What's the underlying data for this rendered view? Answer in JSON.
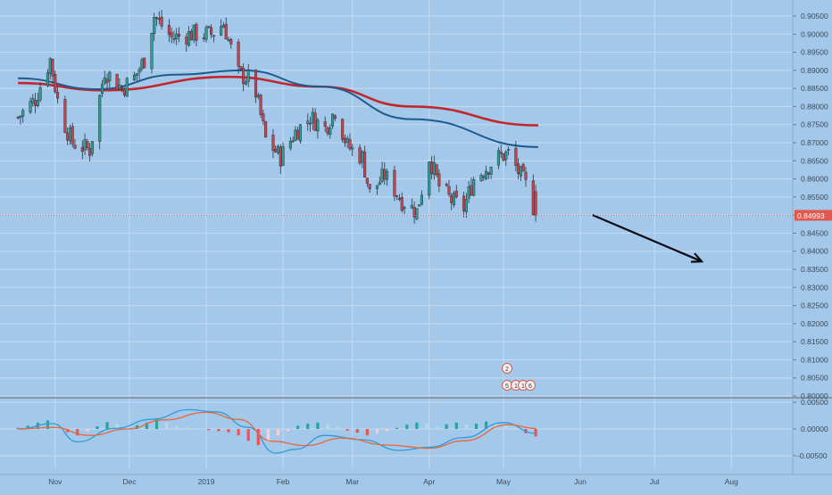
{
  "chart_data": [
    {
      "type": "candlestick",
      "title": "",
      "x_tick_labels": [
        "Nov",
        "Dec",
        "2019",
        "Feb",
        "Mar",
        "Apr",
        "May",
        "Jun",
        "Jul",
        "Aug"
      ],
      "y_tick_labels": [
        "0.90500",
        "0.90000",
        "0.89500",
        "0.89000",
        "0.88500",
        "0.88000",
        "0.87500",
        "0.87000",
        "0.86500",
        "0.86000",
        "0.85500",
        "0.85000",
        "0.84500",
        "0.84000",
        "0.83500",
        "0.83000",
        "0.82500",
        "0.82000",
        "0.81500",
        "0.81000",
        "0.80500",
        "0.80000"
      ],
      "ylim": [
        0.8,
        0.907
      ],
      "grid": true,
      "last_price": "0.84993",
      "price_series_anchors": [
        {
          "date": "2018-10-17",
          "close": 0.877
        },
        {
          "date": "2018-10-24",
          "close": 0.882
        },
        {
          "date": "2018-10-30",
          "close": 0.893
        },
        {
          "date": "2018-11-03",
          "close": 0.878
        },
        {
          "date": "2018-11-08",
          "close": 0.87
        },
        {
          "date": "2018-11-15",
          "close": 0.868
        },
        {
          "date": "2018-11-21",
          "close": 0.89
        },
        {
          "date": "2018-11-28",
          "close": 0.885
        },
        {
          "date": "2018-12-03",
          "close": 0.888
        },
        {
          "date": "2018-12-07",
          "close": 0.893
        },
        {
          "date": "2018-12-11",
          "close": 0.905
        },
        {
          "date": "2018-12-18",
          "close": 0.899
        },
        {
          "date": "2018-12-26",
          "close": 0.9
        },
        {
          "date": "2019-01-03",
          "close": 0.9
        },
        {
          "date": "2019-01-08",
          "close": 0.903
        },
        {
          "date": "2019-01-14",
          "close": 0.889
        },
        {
          "date": "2019-01-20",
          "close": 0.887
        },
        {
          "date": "2019-01-25",
          "close": 0.871
        },
        {
          "date": "2019-01-31",
          "close": 0.866
        },
        {
          "date": "2019-02-06",
          "close": 0.873
        },
        {
          "date": "2019-02-12",
          "close": 0.877
        },
        {
          "date": "2019-02-18",
          "close": 0.874
        },
        {
          "date": "2019-02-22",
          "close": 0.879
        },
        {
          "date": "2019-02-27",
          "close": 0.869
        },
        {
          "date": "2019-03-05",
          "close": 0.866
        },
        {
          "date": "2019-03-08",
          "close": 0.856
        },
        {
          "date": "2019-03-14",
          "close": 0.861
        },
        {
          "date": "2019-03-21",
          "close": 0.854
        },
        {
          "date": "2019-03-27",
          "close": 0.851
        },
        {
          "date": "2019-04-01",
          "close": 0.866
        },
        {
          "date": "2019-04-05",
          "close": 0.858
        },
        {
          "date": "2019-04-10",
          "close": 0.854
        },
        {
          "date": "2019-04-15",
          "close": 0.852
        },
        {
          "date": "2019-04-19",
          "close": 0.86
        },
        {
          "date": "2019-04-24",
          "close": 0.863
        },
        {
          "date": "2019-04-29",
          "close": 0.866
        },
        {
          "date": "2019-05-03",
          "close": 0.867
        },
        {
          "date": "2019-05-07",
          "close": 0.862
        },
        {
          "date": "2019-05-11",
          "close": 0.857
        },
        {
          "date": "2019-05-14",
          "close": 0.84993
        }
      ],
      "moving_averages": [
        {
          "color": "#c0282d",
          "points": [
            {
              "date": "2018-10-17",
              "value": 0.8865
            },
            {
              "date": "2018-11-21",
              "value": 0.8845
            },
            {
              "date": "2019-01-10",
              "value": 0.8882
            },
            {
              "date": "2019-02-16",
              "value": 0.8855
            },
            {
              "date": "2019-03-25",
              "value": 0.88
            },
            {
              "date": "2019-05-15",
              "value": 0.8748
            }
          ]
        },
        {
          "color": "#1f5a8c",
          "points": [
            {
              "date": "2018-10-17",
              "value": 0.8878
            },
            {
              "date": "2018-11-18",
              "value": 0.8848
            },
            {
              "date": "2018-12-20",
              "value": 0.8888
            },
            {
              "date": "2019-01-16",
              "value": 0.89
            },
            {
              "date": "2019-02-16",
              "value": 0.8855
            },
            {
              "date": "2019-03-25",
              "value": 0.8765
            },
            {
              "date": "2019-05-15",
              "value": 0.8688
            }
          ]
        }
      ],
      "projection_arrow": {
        "start": {
          "date": "2019-06-06",
          "value": 0.85
        },
        "end": {
          "date": "2019-07-20",
          "value": 0.8372
        }
      },
      "event_markers": [
        "2",
        "5",
        "1",
        "1",
        "6"
      ]
    },
    {
      "type": "bar",
      "title": "",
      "y_tick_labels": [
        "0.00500",
        "0.00000",
        "-0.00500"
      ],
      "ylim": [
        -0.0066,
        0.006
      ],
      "grid": true,
      "histogram_bars": [
        {
          "date": "2018-10-17",
          "value": 0.0002
        },
        {
          "date": "2018-10-21",
          "value": 0.0006
        },
        {
          "date": "2018-10-25",
          "value": 0.0012
        },
        {
          "date": "2018-10-29",
          "value": 0.0016
        },
        {
          "date": "2018-11-02",
          "value": 0.0003
        },
        {
          "date": "2018-11-06",
          "value": -0.0006
        },
        {
          "date": "2018-11-10",
          "value": -0.0012
        },
        {
          "date": "2018-11-14",
          "value": -0.0004
        },
        {
          "date": "2018-11-18",
          "value": 0.0005
        },
        {
          "date": "2018-11-22",
          "value": 0.0013
        },
        {
          "date": "2018-11-26",
          "value": 0.001
        },
        {
          "date": "2018-11-30",
          "value": 0.0004
        },
        {
          "date": "2018-12-04",
          "value": 0.0007
        },
        {
          "date": "2018-12-08",
          "value": 0.0012
        },
        {
          "date": "2018-12-12",
          "value": 0.002
        },
        {
          "date": "2018-12-16",
          "value": 0.0012
        },
        {
          "date": "2018-12-20",
          "value": 0.0006
        },
        {
          "date": "2018-12-24",
          "value": 0.0003
        },
        {
          "date": "2018-12-28",
          "value": 0.0001
        },
        {
          "date": "2019-01-02",
          "value": -0.0002
        },
        {
          "date": "2019-01-06",
          "value": -0.0004
        },
        {
          "date": "2019-01-10",
          "value": -0.0006
        },
        {
          "date": "2019-01-14",
          "value": -0.0012
        },
        {
          "date": "2019-01-18",
          "value": -0.0022
        },
        {
          "date": "2019-01-22",
          "value": -0.003
        },
        {
          "date": "2019-01-26",
          "value": -0.0024
        },
        {
          "date": "2019-01-30",
          "value": -0.0012
        },
        {
          "date": "2019-02-03",
          "value": -0.0004
        },
        {
          "date": "2019-02-07",
          "value": 0.0006
        },
        {
          "date": "2019-02-11",
          "value": 0.001
        },
        {
          "date": "2019-02-15",
          "value": 0.0012
        },
        {
          "date": "2019-02-19",
          "value": 0.0009
        },
        {
          "date": "2019-02-23",
          "value": 0.0005
        },
        {
          "date": "2019-02-27",
          "value": -0.0003
        },
        {
          "date": "2019-03-03",
          "value": -0.0007
        },
        {
          "date": "2019-03-07",
          "value": -0.0012
        },
        {
          "date": "2019-03-11",
          "value": -0.0008
        },
        {
          "date": "2019-03-15",
          "value": -0.0004
        },
        {
          "date": "2019-03-19",
          "value": 0.0002
        },
        {
          "date": "2019-03-23",
          "value": 0.0008
        },
        {
          "date": "2019-03-27",
          "value": 0.0012
        },
        {
          "date": "2019-03-31",
          "value": 0.001
        },
        {
          "date": "2019-04-04",
          "value": 0.0004
        },
        {
          "date": "2019-04-08",
          "value": 0.0009
        },
        {
          "date": "2019-04-12",
          "value": 0.0012
        },
        {
          "date": "2019-04-16",
          "value": 0.0008
        },
        {
          "date": "2019-04-20",
          "value": 0.001
        },
        {
          "date": "2019-04-24",
          "value": 0.0014
        },
        {
          "date": "2019-04-28",
          "value": 0.001
        },
        {
          "date": "2019-05-02",
          "value": 0.0007
        },
        {
          "date": "2019-05-06",
          "value": 0.0002
        },
        {
          "date": "2019-05-10",
          "value": -0.0008
        },
        {
          "date": "2019-05-14",
          "value": -0.0014
        }
      ],
      "lines": [
        {
          "color": "#2e9bdc",
          "points": [
            {
              "date": "2018-10-17",
              "value": 0.0
            },
            {
              "date": "2018-10-31",
              "value": 0.001
            },
            {
              "date": "2018-11-10",
              "value": -0.0024
            },
            {
              "date": "2018-11-25",
              "value": 0.0001
            },
            {
              "date": "2018-12-10",
              "value": 0.0018
            },
            {
              "date": "2018-12-25",
              "value": 0.0036
            },
            {
              "date": "2019-01-05",
              "value": 0.0032
            },
            {
              "date": "2019-01-18",
              "value": 0.0003
            },
            {
              "date": "2019-01-29",
              "value": -0.0045
            },
            {
              "date": "2019-02-06",
              "value": -0.0038
            },
            {
              "date": "2019-02-18",
              "value": -0.0012
            },
            {
              "date": "2019-03-05",
              "value": -0.002
            },
            {
              "date": "2019-03-20",
              "value": -0.004
            },
            {
              "date": "2019-04-01",
              "value": -0.0034
            },
            {
              "date": "2019-04-15",
              "value": -0.0016
            },
            {
              "date": "2019-05-01",
              "value": 0.0012
            },
            {
              "date": "2019-05-14",
              "value": -0.0008
            }
          ]
        },
        {
          "color": "#e8673c",
          "points": [
            {
              "date": "2018-10-17",
              "value": 0.0
            },
            {
              "date": "2018-10-31",
              "value": 0.0003
            },
            {
              "date": "2018-11-15",
              "value": -0.0012
            },
            {
              "date": "2018-11-30",
              "value": 0.0
            },
            {
              "date": "2018-12-15",
              "value": 0.0017
            },
            {
              "date": "2019-01-01",
              "value": 0.0031
            },
            {
              "date": "2019-01-14",
              "value": 0.0018
            },
            {
              "date": "2019-01-28",
              "value": -0.0023
            },
            {
              "date": "2019-02-10",
              "value": -0.0031
            },
            {
              "date": "2019-02-25",
              "value": -0.0017
            },
            {
              "date": "2019-03-15",
              "value": -0.003
            },
            {
              "date": "2019-04-01",
              "value": -0.0036
            },
            {
              "date": "2019-04-15",
              "value": -0.0022
            },
            {
              "date": "2019-05-03",
              "value": 0.0008
            },
            {
              "date": "2019-05-14",
              "value": 0.0001
            }
          ]
        }
      ]
    }
  ],
  "colors": {
    "background": "#a4c8ea",
    "grid": "#c4dbf1",
    "up_candle": "#2aa198",
    "down_candle": "#d0404a",
    "hist_up_strong": "#26a69a",
    "hist_up_weak": "#b2dfdb",
    "hist_down_strong": "#ef5350",
    "hist_down_weak": "#ffcdd2",
    "axis_text": "#3b4a5a",
    "price_label_bg": "#e3574d",
    "arrow": "#0b0b14"
  }
}
